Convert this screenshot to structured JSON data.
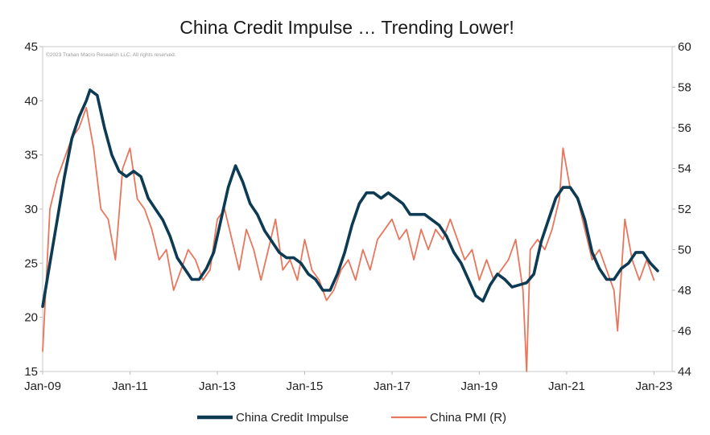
{
  "chart_data": {
    "type": "line",
    "title": "China Credit Impulse … Trending Lower!",
    "copyright": "©2023 Trahan Macro Research LLC. All rights reserved.",
    "x_ticks": [
      "Jan-09",
      "Jan-11",
      "Jan-13",
      "Jan-15",
      "Jan-17",
      "Jan-19",
      "Jan-21",
      "Jan-23"
    ],
    "xlim": [
      "2009-01",
      "2023-06"
    ],
    "y_left": {
      "lim": [
        15,
        45
      ],
      "ticks": [
        "15",
        "20",
        "25",
        "30",
        "35",
        "40",
        "45"
      ]
    },
    "y_right": {
      "lim": [
        44,
        60
      ],
      "ticks": [
        "44",
        "46",
        "48",
        "50",
        "52",
        "54",
        "56",
        "58",
        "60"
      ]
    },
    "grid": false,
    "legend_position": "bottom",
    "series": [
      {
        "name": "China Credit Impulse",
        "axis": "left",
        "color": "#0d3b54",
        "points": [
          [
            "2009-01",
            21
          ],
          [
            "2009-03",
            25
          ],
          [
            "2009-05",
            29
          ],
          [
            "2009-07",
            33
          ],
          [
            "2009-09",
            36.5
          ],
          [
            "2009-11",
            38.5
          ],
          [
            "2010-01",
            40
          ],
          [
            "2010-02",
            41
          ],
          [
            "2010-04",
            40.5
          ],
          [
            "2010-06",
            37.5
          ],
          [
            "2010-08",
            35
          ],
          [
            "2010-10",
            33.5
          ],
          [
            "2010-12",
            33
          ],
          [
            "2011-02",
            33.5
          ],
          [
            "2011-04",
            33
          ],
          [
            "2011-06",
            31
          ],
          [
            "2011-08",
            30
          ],
          [
            "2011-10",
            29
          ],
          [
            "2011-12",
            27.5
          ],
          [
            "2012-02",
            25.5
          ],
          [
            "2012-04",
            24.5
          ],
          [
            "2012-06",
            23.5
          ],
          [
            "2012-08",
            23.5
          ],
          [
            "2012-10",
            24.5
          ],
          [
            "2012-12",
            26
          ],
          [
            "2013-02",
            29
          ],
          [
            "2013-04",
            32
          ],
          [
            "2013-06",
            34
          ],
          [
            "2013-08",
            32.5
          ],
          [
            "2013-10",
            30.5
          ],
          [
            "2013-12",
            29.5
          ],
          [
            "2014-02",
            28
          ],
          [
            "2014-04",
            27
          ],
          [
            "2014-06",
            26
          ],
          [
            "2014-08",
            25.5
          ],
          [
            "2014-10",
            25.5
          ],
          [
            "2014-12",
            25
          ],
          [
            "2015-02",
            24
          ],
          [
            "2015-04",
            23.5
          ],
          [
            "2015-06",
            22.5
          ],
          [
            "2015-08",
            22.5
          ],
          [
            "2015-10",
            24
          ],
          [
            "2015-12",
            26
          ],
          [
            "2016-02",
            28.5
          ],
          [
            "2016-04",
            30.5
          ],
          [
            "2016-06",
            31.5
          ],
          [
            "2016-08",
            31.5
          ],
          [
            "2016-10",
            31
          ],
          [
            "2016-12",
            31.5
          ],
          [
            "2017-02",
            31
          ],
          [
            "2017-04",
            30.5
          ],
          [
            "2017-06",
            29.5
          ],
          [
            "2017-08",
            29.5
          ],
          [
            "2017-10",
            29.5
          ],
          [
            "2017-12",
            29
          ],
          [
            "2018-02",
            28.5
          ],
          [
            "2018-04",
            27.5
          ],
          [
            "2018-06",
            26
          ],
          [
            "2018-08",
            25
          ],
          [
            "2018-10",
            23.5
          ],
          [
            "2018-12",
            22
          ],
          [
            "2019-02",
            21.5
          ],
          [
            "2019-04",
            23
          ],
          [
            "2019-06",
            24
          ],
          [
            "2019-08",
            23.5
          ],
          [
            "2019-10",
            22.8
          ],
          [
            "2019-12",
            23
          ],
          [
            "2020-02",
            23.2
          ],
          [
            "2020-04",
            24
          ],
          [
            "2020-06",
            27
          ],
          [
            "2020-08",
            29
          ],
          [
            "2020-10",
            31
          ],
          [
            "2020-12",
            32
          ],
          [
            "2021-02",
            32
          ],
          [
            "2021-04",
            31
          ],
          [
            "2021-06",
            29
          ],
          [
            "2021-08",
            26
          ],
          [
            "2021-10",
            24.5
          ],
          [
            "2021-12",
            23.5
          ],
          [
            "2022-02",
            23.5
          ],
          [
            "2022-04",
            24.5
          ],
          [
            "2022-06",
            25
          ],
          [
            "2022-08",
            26
          ],
          [
            "2022-10",
            26
          ],
          [
            "2022-12",
            25
          ],
          [
            "2023-02",
            24.3
          ]
        ]
      },
      {
        "name": "China PMI (R)",
        "axis": "right",
        "color": "#e8765c",
        "points": [
          [
            "2009-01",
            45
          ],
          [
            "2009-03",
            52
          ],
          [
            "2009-05",
            53.5
          ],
          [
            "2009-07",
            54.5
          ],
          [
            "2009-09",
            55.5
          ],
          [
            "2009-11",
            56
          ],
          [
            "2010-01",
            57
          ],
          [
            "2010-03",
            55
          ],
          [
            "2010-05",
            52
          ],
          [
            "2010-07",
            51.5
          ],
          [
            "2010-09",
            49.5
          ],
          [
            "2010-11",
            54
          ],
          [
            "2011-01",
            55
          ],
          [
            "2011-03",
            52.5
          ],
          [
            "2011-05",
            52
          ],
          [
            "2011-07",
            51
          ],
          [
            "2011-09",
            49.5
          ],
          [
            "2011-11",
            50
          ],
          [
            "2012-01",
            48
          ],
          [
            "2012-03",
            49
          ],
          [
            "2012-05",
            50
          ],
          [
            "2012-07",
            49.5
          ],
          [
            "2012-09",
            48.5
          ],
          [
            "2012-11",
            49
          ],
          [
            "2013-01",
            51.5
          ],
          [
            "2013-03",
            52
          ],
          [
            "2013-05",
            50.5
          ],
          [
            "2013-07",
            49
          ],
          [
            "2013-09",
            51
          ],
          [
            "2013-11",
            50
          ],
          [
            "2014-01",
            48.5
          ],
          [
            "2014-03",
            50
          ],
          [
            "2014-05",
            51.5
          ],
          [
            "2014-07",
            49
          ],
          [
            "2014-09",
            49.5
          ],
          [
            "2014-11",
            48.5
          ],
          [
            "2015-01",
            50.5
          ],
          [
            "2015-03",
            49
          ],
          [
            "2015-05",
            48.5
          ],
          [
            "2015-07",
            47.5
          ],
          [
            "2015-09",
            48
          ],
          [
            "2015-11",
            49
          ],
          [
            "2016-01",
            49.5
          ],
          [
            "2016-03",
            48.5
          ],
          [
            "2016-05",
            50
          ],
          [
            "2016-07",
            49
          ],
          [
            "2016-09",
            50.5
          ],
          [
            "2016-11",
            51
          ],
          [
            "2017-01",
            51.5
          ],
          [
            "2017-03",
            50.5
          ],
          [
            "2017-05",
            51
          ],
          [
            "2017-07",
            49.5
          ],
          [
            "2017-09",
            51
          ],
          [
            "2017-11",
            50
          ],
          [
            "2018-01",
            51
          ],
          [
            "2018-03",
            50.5
          ],
          [
            "2018-05",
            51.5
          ],
          [
            "2018-07",
            50.5
          ],
          [
            "2018-09",
            49.5
          ],
          [
            "2018-11",
            50
          ],
          [
            "2019-01",
            48.5
          ],
          [
            "2019-03",
            49.5
          ],
          [
            "2019-05",
            48.5
          ],
          [
            "2019-07",
            49
          ],
          [
            "2019-09",
            49.5
          ],
          [
            "2019-11",
            50.5
          ],
          [
            "2020-01",
            48
          ],
          [
            "2020-02",
            44
          ],
          [
            "2020-03",
            50
          ],
          [
            "2020-05",
            50.5
          ],
          [
            "2020-07",
            50
          ],
          [
            "2020-09",
            51
          ],
          [
            "2020-11",
            52.5
          ],
          [
            "2020-12",
            55
          ],
          [
            "2021-02",
            53
          ],
          [
            "2021-04",
            52.5
          ],
          [
            "2021-06",
            51
          ],
          [
            "2021-08",
            49.5
          ],
          [
            "2021-10",
            50
          ],
          [
            "2021-12",
            49
          ],
          [
            "2022-02",
            48
          ],
          [
            "2022-03",
            46
          ],
          [
            "2022-05",
            51.5
          ],
          [
            "2022-07",
            49.5
          ],
          [
            "2022-09",
            48.5
          ],
          [
            "2022-11",
            49.5
          ],
          [
            "2023-01",
            48.5
          ]
        ]
      }
    ]
  }
}
